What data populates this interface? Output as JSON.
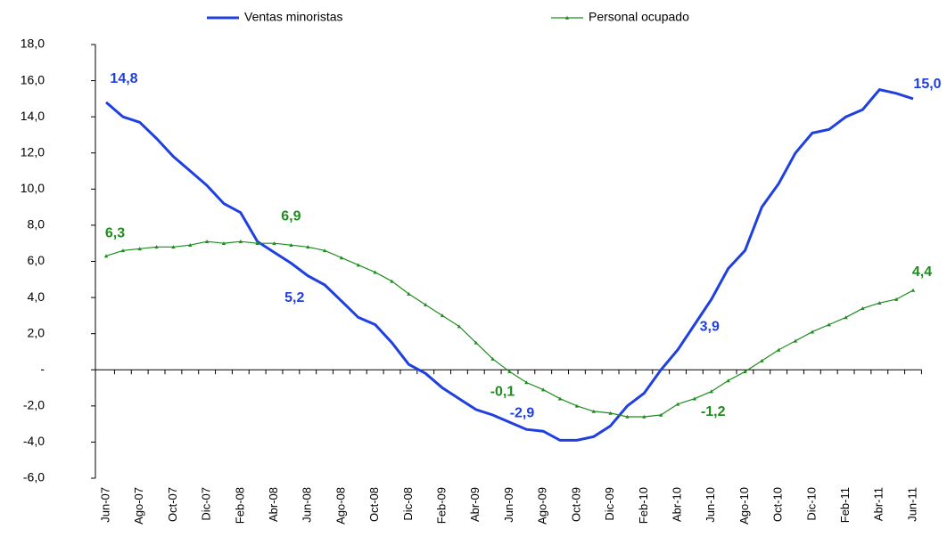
{
  "chart_data": {
    "type": "line",
    "categories": [
      "Jun-07",
      null,
      "Ago-07",
      null,
      "Oct-07",
      null,
      "Dic-07",
      null,
      "Feb-08",
      null,
      "Abr-08",
      null,
      "Jun-08",
      null,
      "Ago-08",
      null,
      "Oct-08",
      null,
      "Dic-08",
      null,
      "Feb-09",
      null,
      "Abr-09",
      null,
      "Jun-09",
      null,
      "Ago-09",
      null,
      "Oct-09",
      null,
      "Dic-09",
      null,
      "Feb-10",
      null,
      "Abr-10",
      null,
      "Jun-10",
      null,
      "Ago-10",
      null,
      "Oct-10",
      null,
      "Dic-10",
      null,
      "Feb-11",
      null,
      "Abr-11",
      null,
      "Jun-11"
    ],
    "series": [
      {
        "name": "Ventas minoristas",
        "color": "#1f3fe0",
        "values": [
          14.8,
          14.0,
          13.7,
          12.8,
          11.8,
          11.0,
          10.2,
          9.2,
          8.7,
          7.1,
          6.5,
          5.9,
          5.2,
          4.7,
          3.8,
          2.9,
          2.5,
          1.5,
          0.3,
          -0.2,
          -1.0,
          -1.6,
          -2.2,
          -2.5,
          -2.9,
          -3.3,
          -3.4,
          -3.9,
          -3.9,
          -3.7,
          -3.1,
          -2.0,
          -1.3,
          0.0,
          1.1,
          2.5,
          3.9,
          5.6,
          6.6,
          9.0,
          10.3,
          12.0,
          13.1,
          13.3,
          14.0,
          14.4,
          15.5,
          15.3,
          15.0
        ],
        "value_labels": [
          "14,8",
          null,
          null,
          null,
          null,
          null,
          null,
          null,
          null,
          null,
          null,
          null,
          "5,2",
          null,
          null,
          null,
          null,
          null,
          null,
          null,
          null,
          null,
          null,
          null,
          "-2,9",
          null,
          null,
          null,
          null,
          null,
          null,
          null,
          null,
          null,
          null,
          null,
          "3,9",
          null,
          null,
          null,
          null,
          null,
          null,
          null,
          null,
          null,
          null,
          null,
          "15,0"
        ]
      },
      {
        "name": "Personal ocupado",
        "color": "#1e8c1e",
        "values": [
          6.3,
          6.6,
          6.7,
          6.8,
          6.8,
          6.9,
          7.1,
          7.0,
          7.1,
          7.0,
          7.0,
          6.9,
          6.8,
          6.6,
          6.2,
          5.8,
          5.4,
          4.9,
          4.2,
          3.6,
          3.0,
          2.4,
          1.5,
          0.6,
          -0.1,
          -0.7,
          -1.1,
          -1.6,
          -2.0,
          -2.3,
          -2.4,
          -2.6,
          -2.6,
          -2.5,
          -1.9,
          -1.6,
          -1.2,
          -0.6,
          -0.1,
          0.5,
          1.1,
          1.6,
          2.1,
          2.5,
          2.9,
          3.4,
          3.7,
          3.9,
          4.4
        ],
        "value_labels": [
          "6,3",
          null,
          null,
          null,
          null,
          null,
          null,
          null,
          null,
          null,
          null,
          "6,9",
          null,
          null,
          null,
          null,
          null,
          null,
          null,
          null,
          null,
          null,
          null,
          null,
          "-0,1",
          null,
          null,
          null,
          null,
          null,
          null,
          null,
          null,
          null,
          null,
          null,
          "-1,2",
          null,
          null,
          null,
          null,
          null,
          null,
          null,
          null,
          null,
          null,
          null,
          "4,4"
        ]
      }
    ],
    "ylim": [
      -6,
      18
    ],
    "yticks": [
      {
        "value": -6,
        "label": "-6,0"
      },
      {
        "value": -4,
        "label": "-4,0"
      },
      {
        "value": -2,
        "label": "-2,0"
      },
      {
        "value": 0,
        "label": "-"
      },
      {
        "value": 2,
        "label": "2,0"
      },
      {
        "value": 4,
        "label": "4,0"
      },
      {
        "value": 6,
        "label": "6,0"
      },
      {
        "value": 8,
        "label": "8,0"
      },
      {
        "value": 10,
        "label": "10,0"
      },
      {
        "value": 12,
        "label": "12,0"
      },
      {
        "value": 14,
        "label": "14,0"
      },
      {
        "value": 16,
        "label": "16,0"
      },
      {
        "value": 18,
        "label": "18,0"
      }
    ],
    "legend": "top"
  }
}
